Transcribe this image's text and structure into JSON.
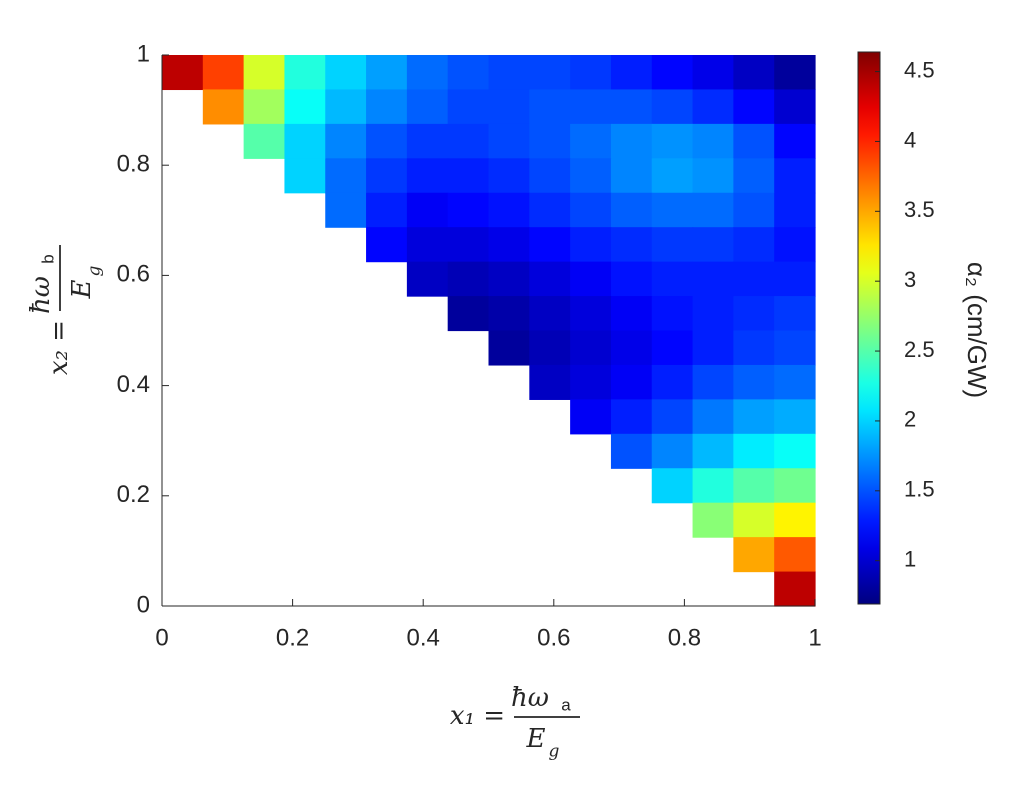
{
  "chart_data": {
    "type": "heatmap",
    "colormap": "jet",
    "xlim": [
      0,
      1
    ],
    "ylim": [
      0,
      1
    ],
    "xticks": [
      0,
      0.2,
      0.4,
      0.6,
      0.8,
      1
    ],
    "yticks": [
      0,
      0.2,
      0.4,
      0.6,
      0.8,
      1
    ],
    "clim": [
      0.69,
      4.64
    ],
    "cticks": [
      1,
      1.5,
      2,
      2.5,
      3,
      3.5,
      4,
      4.5
    ],
    "xlabel": {
      "lhs": "x₁ =",
      "numerator": "ħω",
      "numerator_sub": "a",
      "denominator": "E",
      "denominator_sub": "g"
    },
    "ylabel": {
      "lhs": "x₂ =",
      "numerator": "ħω",
      "numerator_sub": "b",
      "denominator": "E",
      "denominator_sub": "g"
    },
    "colorbar_label": "α₂ (cm/GW)",
    "z": [
      [
        4.4,
        3.9,
        3.0,
        2.3,
        2.0,
        1.8,
        1.6,
        1.5,
        1.45,
        1.45,
        1.4,
        1.3,
        1.2,
        1.1,
        0.95,
        0.8
      ],
      [
        null,
        3.6,
        2.8,
        2.2,
        1.9,
        1.7,
        1.55,
        1.45,
        1.45,
        1.5,
        1.5,
        1.5,
        1.45,
        1.35,
        1.2,
        1.0
      ],
      [
        null,
        null,
        2.5,
        2.0,
        1.7,
        1.5,
        1.4,
        1.4,
        1.45,
        1.5,
        1.6,
        1.7,
        1.75,
        1.7,
        1.5,
        1.2
      ],
      [
        null,
        null,
        null,
        2.0,
        1.6,
        1.4,
        1.3,
        1.3,
        1.35,
        1.45,
        1.55,
        1.7,
        1.8,
        1.75,
        1.55,
        1.3
      ],
      [
        null,
        null,
        null,
        null,
        1.6,
        1.3,
        1.15,
        1.2,
        1.25,
        1.35,
        1.45,
        1.55,
        1.6,
        1.6,
        1.5,
        1.3
      ],
      [
        null,
        null,
        null,
        null,
        null,
        1.2,
        1.05,
        1.05,
        1.1,
        1.2,
        1.3,
        1.35,
        1.4,
        1.4,
        1.35,
        1.25
      ],
      [
        null,
        null,
        null,
        null,
        null,
        null,
        0.95,
        0.9,
        0.95,
        1.05,
        1.15,
        1.25,
        1.3,
        1.3,
        1.3,
        1.3
      ],
      [
        null,
        null,
        null,
        null,
        null,
        null,
        null,
        0.8,
        0.85,
        0.95,
        1.05,
        1.15,
        1.25,
        1.3,
        1.35,
        1.4
      ],
      [
        null,
        null,
        null,
        null,
        null,
        null,
        null,
        null,
        0.8,
        0.9,
        1.0,
        1.1,
        1.2,
        1.3,
        1.4,
        1.45
      ],
      [
        null,
        null,
        null,
        null,
        null,
        null,
        null,
        null,
        null,
        0.95,
        1.05,
        1.15,
        1.3,
        1.45,
        1.55,
        1.6
      ],
      [
        null,
        null,
        null,
        null,
        null,
        null,
        null,
        null,
        null,
        null,
        1.15,
        1.3,
        1.45,
        1.65,
        1.8,
        1.85
      ],
      [
        null,
        null,
        null,
        null,
        null,
        null,
        null,
        null,
        null,
        null,
        null,
        1.5,
        1.7,
        1.9,
        2.1,
        2.2
      ],
      [
        null,
        null,
        null,
        null,
        null,
        null,
        null,
        null,
        null,
        null,
        null,
        null,
        2.0,
        2.3,
        2.5,
        2.6
      ],
      [
        null,
        null,
        null,
        null,
        null,
        null,
        null,
        null,
        null,
        null,
        null,
        null,
        null,
        2.7,
        3.0,
        3.2
      ],
      [
        null,
        null,
        null,
        null,
        null,
        null,
        null,
        null,
        null,
        null,
        null,
        null,
        null,
        null,
        3.5,
        3.8
      ],
      [
        null,
        null,
        null,
        null,
        null,
        null,
        null,
        null,
        null,
        null,
        null,
        null,
        null,
        null,
        null,
        4.4
      ]
    ]
  }
}
